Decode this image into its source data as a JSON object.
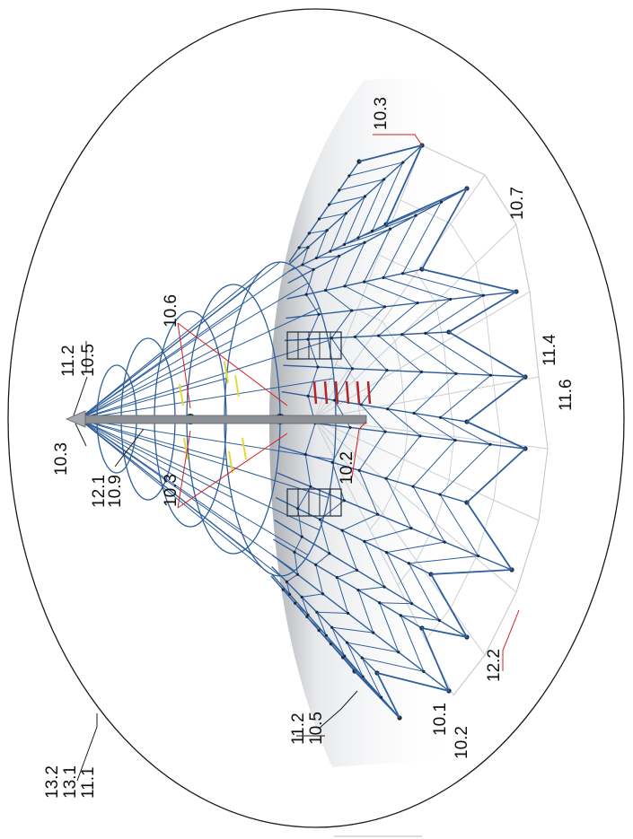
{
  "labels": {
    "tip_group_a": "11.2",
    "tip_group_b": "10.5",
    "tip_left": "10.3",
    "pole_a": "12.1",
    "pole_b": "10.9",
    "ring_upper": "10.6",
    "ring_lower": "10.3",
    "center": "10.2",
    "top_right": "10.3",
    "right_upper": "10.7",
    "right_mid_a": "11.4",
    "right_mid_b": "11.6",
    "bottom_right": "12.2",
    "bottom_left_a": "11.2",
    "bottom_left_b": "10.5",
    "bottom_mid_a": "10.1",
    "bottom_mid_b": "10.2",
    "outer_a": "13.2",
    "outer_b": "13.1",
    "outer_c": "11.1"
  },
  "colors": {
    "net_front": "#2f5f9a",
    "net_back": "#c9ccd2",
    "node": "#1b2b3f",
    "leader_red": "#d42020",
    "accent_yellow": "#e5d83a",
    "pole": "#8c8f94",
    "ellipse": "#1a1a1a"
  }
}
